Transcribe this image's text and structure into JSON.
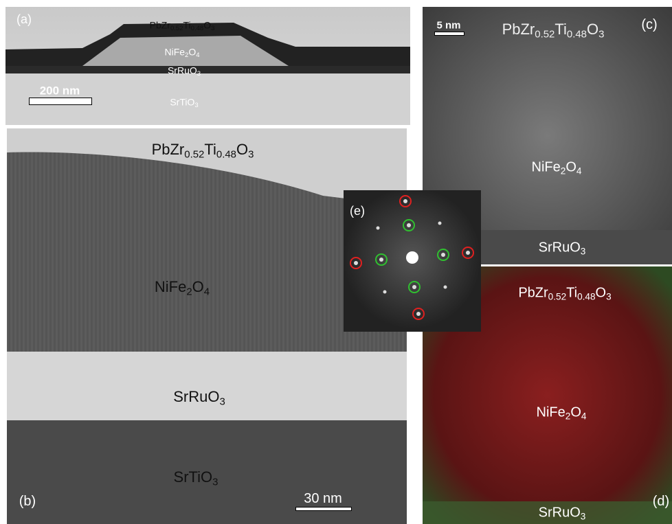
{
  "panels": [
    {
      "label": "(a)",
      "scale_bar": "200 nm",
      "layers": [
        [
          "PbZr",
          "0.52",
          "Ti",
          "0.48",
          "O",
          "3"
        ],
        [
          "NiFe",
          "2",
          "O",
          "4"
        ],
        [
          "SrRuO",
          "3"
        ],
        [
          "SrTiO",
          "3"
        ]
      ]
    },
    {
      "label": "(b)",
      "scale_bar": "30 nm",
      "layers": [
        [
          "PbZr",
          "0.52",
          "Ti",
          "0.48",
          "O",
          "3"
        ],
        [
          "NiFe",
          "2",
          "O",
          "4"
        ],
        [
          "SrRuO",
          "3"
        ],
        [
          "SrTiO",
          "3"
        ]
      ]
    },
    {
      "label": "(c)",
      "scale_bar": "5 nm",
      "layers": [
        [
          "PbZr",
          "0.52",
          "Ti",
          "0.48",
          "O",
          "3"
        ],
        [
          "NiFe",
          "2",
          "O",
          "4"
        ],
        [
          "SrRuO",
          "3"
        ]
      ]
    },
    {
      "label": "(d)",
      "layers": [
        [
          "PbZr",
          "0.52",
          "Ti",
          "0.48",
          "O",
          "3"
        ],
        [
          "NiFe",
          "2",
          "O",
          "4"
        ],
        [
          "SrRuO",
          "3"
        ]
      ]
    },
    {
      "label": "(e)"
    }
  ]
}
